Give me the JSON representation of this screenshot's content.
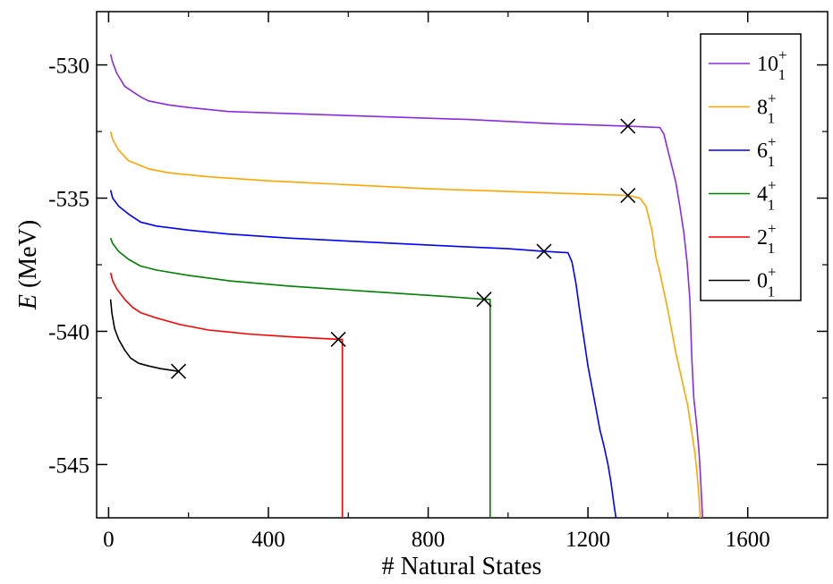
{
  "chart_data": {
    "type": "line",
    "title": "",
    "xlabel": "# Natural States",
    "ylabel_italic": "E",
    "ylabel_rest": " (MeV)",
    "xlim": [
      -30,
      1800
    ],
    "ylim": [
      -547,
      -528
    ],
    "xticks": [
      0,
      400,
      800,
      1200,
      1600
    ],
    "yticks": [
      -530,
      -535,
      -540,
      -545
    ],
    "xtick_labels": [
      "0",
      "400",
      "800",
      "1200",
      "1600"
    ],
    "ytick_labels": [
      "-530",
      "-535",
      "-540",
      "-545"
    ],
    "legend_position": "top-right",
    "series": [
      {
        "name": "10",
        "label_base": "10",
        "label_sub": "1",
        "label_sup": "+",
        "color": "#8a2be2",
        "marker": [
          1300,
          -532.3
        ],
        "points": [
          [
            5,
            -529.6
          ],
          [
            10,
            -529.9
          ],
          [
            20,
            -530.3
          ],
          [
            40,
            -530.8
          ],
          [
            60,
            -531.0
          ],
          [
            80,
            -531.2
          ],
          [
            100,
            -531.35
          ],
          [
            150,
            -531.5
          ],
          [
            200,
            -531.6
          ],
          [
            300,
            -531.75
          ],
          [
            500,
            -531.85
          ],
          [
            700,
            -531.95
          ],
          [
            900,
            -532.05
          ],
          [
            1100,
            -532.2
          ],
          [
            1300,
            -532.3
          ],
          [
            1380,
            -532.35
          ],
          [
            1390,
            -532.6
          ],
          [
            1400,
            -533.2
          ],
          [
            1410,
            -533.8
          ],
          [
            1420,
            -534.4
          ],
          [
            1430,
            -535.3
          ],
          [
            1440,
            -536.3
          ],
          [
            1448,
            -537.4
          ],
          [
            1455,
            -538.8
          ],
          [
            1460,
            -541.0
          ],
          [
            1465,
            -542.5
          ],
          [
            1472,
            -543.5
          ],
          [
            1478,
            -544.5
          ],
          [
            1482,
            -545.5
          ],
          [
            1485,
            -546.5
          ],
          [
            1487,
            -547.0
          ]
        ]
      },
      {
        "name": "8",
        "label_base": "8",
        "label_sub": "1",
        "label_sup": "+",
        "color": "#ffa500",
        "marker": [
          1300,
          -534.9
        ],
        "points": [
          [
            5,
            -532.5
          ],
          [
            10,
            -532.8
          ],
          [
            25,
            -533.2
          ],
          [
            50,
            -533.6
          ],
          [
            100,
            -533.9
          ],
          [
            150,
            -534.05
          ],
          [
            250,
            -534.2
          ],
          [
            400,
            -534.35
          ],
          [
            600,
            -534.5
          ],
          [
            800,
            -534.65
          ],
          [
            1000,
            -534.75
          ],
          [
            1200,
            -534.85
          ],
          [
            1300,
            -534.9
          ],
          [
            1330,
            -535.0
          ],
          [
            1345,
            -535.3
          ],
          [
            1360,
            -536.2
          ],
          [
            1370,
            -537.2
          ],
          [
            1380,
            -537.8
          ],
          [
            1390,
            -538.5
          ],
          [
            1400,
            -539.2
          ],
          [
            1410,
            -540.0
          ],
          [
            1420,
            -540.8
          ],
          [
            1435,
            -541.8
          ],
          [
            1450,
            -542.8
          ],
          [
            1460,
            -543.8
          ],
          [
            1468,
            -544.6
          ],
          [
            1474,
            -545.5
          ],
          [
            1478,
            -546.2
          ],
          [
            1481,
            -547.0
          ]
        ]
      },
      {
        "name": "6",
        "label_base": "6",
        "label_sub": "1",
        "label_sup": "+",
        "color": "#0000ff",
        "marker": [
          1090,
          -537.0
        ],
        "points": [
          [
            5,
            -534.7
          ],
          [
            10,
            -535.0
          ],
          [
            25,
            -535.3
          ],
          [
            50,
            -535.6
          ],
          [
            80,
            -535.9
          ],
          [
            120,
            -536.05
          ],
          [
            200,
            -536.2
          ],
          [
            300,
            -536.35
          ],
          [
            450,
            -536.5
          ],
          [
            650,
            -536.65
          ],
          [
            850,
            -536.8
          ],
          [
            1000,
            -536.9
          ],
          [
            1090,
            -537.0
          ],
          [
            1150,
            -537.05
          ],
          [
            1160,
            -537.4
          ],
          [
            1170,
            -538.2
          ],
          [
            1180,
            -539.3
          ],
          [
            1190,
            -540.3
          ],
          [
            1200,
            -541.3
          ],
          [
            1210,
            -542.1
          ],
          [
            1220,
            -542.9
          ],
          [
            1230,
            -543.7
          ],
          [
            1240,
            -544.3
          ],
          [
            1250,
            -545.0
          ],
          [
            1258,
            -545.7
          ],
          [
            1265,
            -546.5
          ],
          [
            1270,
            -547.0
          ]
        ]
      },
      {
        "name": "4",
        "label_base": "4",
        "label_sub": "1",
        "label_sup": "+",
        "color": "#008000",
        "marker": [
          940,
          -538.8
        ],
        "points": [
          [
            5,
            -536.5
          ],
          [
            10,
            -536.7
          ],
          [
            25,
            -537.0
          ],
          [
            50,
            -537.3
          ],
          [
            80,
            -537.55
          ],
          [
            120,
            -537.7
          ],
          [
            200,
            -537.9
          ],
          [
            300,
            -538.1
          ],
          [
            450,
            -538.3
          ],
          [
            650,
            -538.5
          ],
          [
            850,
            -538.7
          ],
          [
            940,
            -538.8
          ],
          [
            955,
            -538.8
          ],
          [
            955,
            -547.0
          ]
        ]
      },
      {
        "name": "2",
        "label_base": "2",
        "label_sub": "1",
        "label_sup": "+",
        "color": "#ff0000",
        "marker": [
          575,
          -540.3
        ],
        "points": [
          [
            5,
            -537.8
          ],
          [
            10,
            -538.1
          ],
          [
            20,
            -538.4
          ],
          [
            40,
            -538.8
          ],
          [
            60,
            -539.1
          ],
          [
            80,
            -539.3
          ],
          [
            120,
            -539.5
          ],
          [
            180,
            -539.75
          ],
          [
            250,
            -539.95
          ],
          [
            350,
            -540.1
          ],
          [
            450,
            -540.2
          ],
          [
            575,
            -540.3
          ],
          [
            585,
            -540.3
          ],
          [
            585,
            -547.0
          ]
        ]
      },
      {
        "name": "0",
        "label_base": "0",
        "label_sub": "1",
        "label_sup": "+",
        "color": "#000000",
        "marker": [
          175,
          -541.5
        ],
        "points": [
          [
            5,
            -538.8
          ],
          [
            8,
            -539.3
          ],
          [
            15,
            -539.9
          ],
          [
            25,
            -540.3
          ],
          [
            40,
            -540.7
          ],
          [
            55,
            -541.0
          ],
          [
            75,
            -541.2
          ],
          [
            100,
            -541.3
          ],
          [
            130,
            -541.4
          ],
          [
            175,
            -541.5
          ]
        ]
      }
    ]
  }
}
